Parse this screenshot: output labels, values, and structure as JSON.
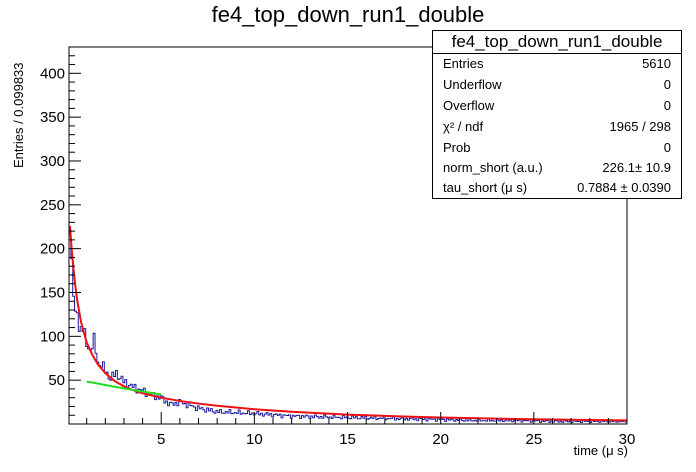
{
  "chart_data": {
    "type": "line",
    "title": "fe4_top_down_run1_double",
    "xlabel": "time (μ s)",
    "ylabel": "Entries / 0.099833",
    "xlim": [
      0.05,
      30
    ],
    "ylim": [
      0,
      430
    ],
    "x_ticks": [
      5,
      10,
      15,
      20,
      25,
      30
    ],
    "y_ticks": [
      50,
      100,
      150,
      200,
      250,
      300,
      350,
      400
    ],
    "grid": false,
    "series": [
      {
        "color": "#1a1aa0",
        "style": "histogram",
        "x": [
          0.1,
          0.2,
          0.3,
          0.4,
          0.5,
          0.6,
          0.8,
          1.0,
          1.2,
          1.4,
          1.6,
          1.8,
          2.0,
          2.3,
          2.6,
          3.0,
          3.5,
          4.0,
          4.5,
          5.0,
          5.5,
          6.0,
          7.0,
          8.0,
          9.0,
          10.0,
          12.0,
          14.0,
          16.0,
          18.0,
          20.0,
          22.0,
          24.0,
          26.0,
          28.0,
          29.9
        ],
        "values": [
          230,
          185,
          150,
          120,
          128,
          110,
          110,
          90,
          85,
          95,
          70,
          68,
          60,
          52,
          58,
          48,
          42,
          38,
          33,
          30,
          22,
          25,
          18,
          14,
          13,
          12,
          9,
          8,
          7,
          6,
          5,
          4,
          4,
          3,
          3,
          3
        ]
      },
      {
        "color": "#ee1111",
        "style": "fit-total",
        "x": [
          0.1,
          0.2,
          0.3,
          0.4,
          0.5,
          0.7,
          1.0,
          1.3,
          1.6,
          2.0,
          2.5,
          3.0,
          3.5,
          4.0,
          5.0,
          6.0,
          7.0,
          8.0,
          10.0,
          12.0,
          15.0,
          18.0,
          20.0,
          22.0,
          25.0,
          28.0,
          30.0
        ],
        "values": [
          226,
          198,
          175,
          156,
          140,
          116,
          93,
          79,
          68,
          58,
          49,
          43,
          38.5,
          35,
          30,
          26.3,
          23.3,
          20.8,
          16.8,
          13.9,
          10.7,
          8.5,
          7.4,
          6.5,
          5.4,
          4.6,
          4.1
        ]
      },
      {
        "color": "#22dd22",
        "style": "fit-long",
        "x": [
          1.0,
          1.5,
          2.0,
          2.5,
          3.0,
          3.5,
          4.0,
          4.5,
          5.0
        ],
        "values": [
          48.5,
          46.5,
          44.5,
          42.5,
          40.6,
          38.8,
          37.1,
          35.4,
          33.8
        ]
      }
    ]
  },
  "stats": {
    "name": "fe4_top_down_run1_double",
    "rows": [
      {
        "key": "Entries",
        "value": "5610"
      },
      {
        "key": "Underflow",
        "value": "0"
      },
      {
        "key": "Overflow",
        "value": "0"
      },
      {
        "key": "χ² / ndf",
        "value": "1965 / 298"
      },
      {
        "key": "Prob",
        "value": "0"
      },
      {
        "key": "norm_short (a.u.)",
        "value": "226.1± 10.9"
      },
      {
        "key": "tau_short (μ s)",
        "value": "0.7884 ± 0.0390"
      }
    ]
  }
}
